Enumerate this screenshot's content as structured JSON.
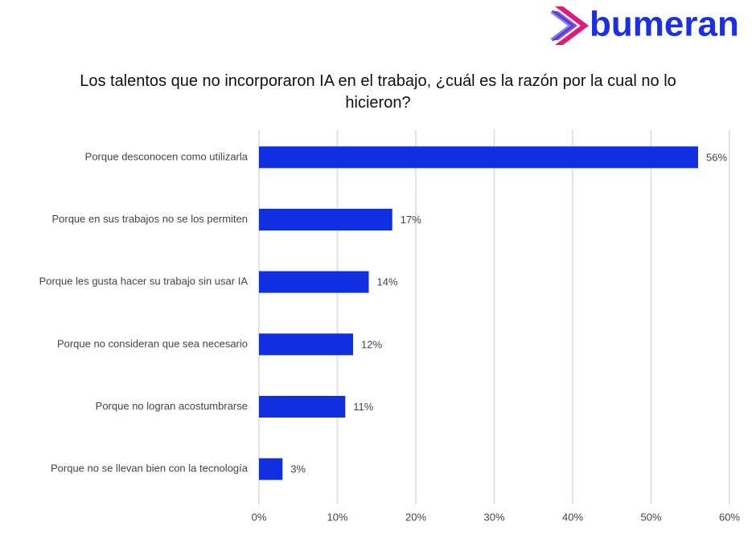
{
  "brand": "bumeran",
  "chart_data": {
    "type": "bar",
    "orientation": "horizontal",
    "title": "Los talentos que no incorporaron IA en el trabajo, ¿cuál es la razón por la cual no lo hicieron?",
    "categories": [
      "Porque desconocen como utilizarla",
      "Porque en sus trabajos no se los permiten",
      "Porque les gusta hacer su trabajo sin usar IA",
      "Porque no consideran que sea necesario",
      "Porque no logran acostumbrarse",
      "Porque no se llevan bien con la tecnología"
    ],
    "values": [
      56,
      17,
      14,
      12,
      11,
      3
    ],
    "value_labels": [
      "56%",
      "17%",
      "14%",
      "12%",
      "11%",
      "3%"
    ],
    "color": "#0f2fe0",
    "xlim": [
      0,
      60
    ],
    "xticks": [
      {
        "value": 0,
        "label": "0%"
      },
      {
        "value": 10,
        "label": "10%"
      },
      {
        "value": 20,
        "label": "20%"
      },
      {
        "value": 30,
        "label": "30%"
      },
      {
        "value": 40,
        "label": "40%"
      },
      {
        "value": 50,
        "label": "50%"
      },
      {
        "value": 60,
        "label": "60%"
      }
    ],
    "grid": true
  }
}
